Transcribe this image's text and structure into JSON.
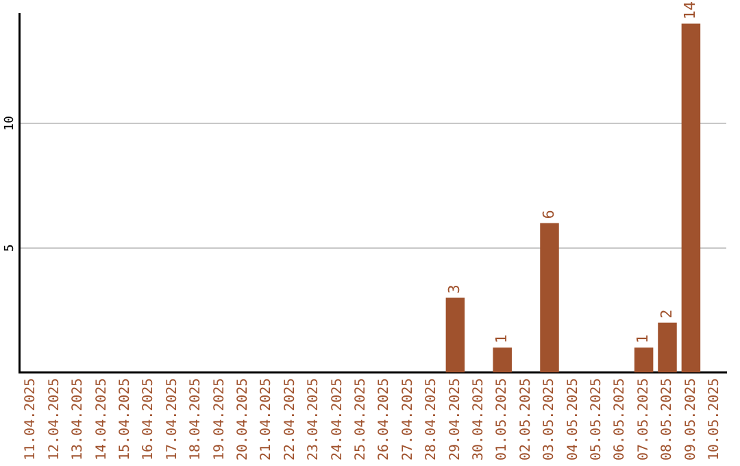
{
  "chart_data": {
    "type": "bar",
    "categories": [
      "11.04.2025",
      "12.04.2025",
      "13.04.2025",
      "14.04.2025",
      "15.04.2025",
      "16.04.2025",
      "17.04.2025",
      "18.04.2025",
      "19.04.2025",
      "20.04.2025",
      "21.04.2025",
      "22.04.2025",
      "23.04.2025",
      "24.04.2025",
      "25.04.2025",
      "26.04.2025",
      "27.04.2025",
      "28.04.2025",
      "29.04.2025",
      "30.04.2025",
      "01.05.2025",
      "02.05.2025",
      "03.05.2025",
      "04.05.2025",
      "05.05.2025",
      "06.05.2025",
      "07.05.2025",
      "08.05.2025",
      "09.05.2025",
      "10.05.2025"
    ],
    "values": [
      0,
      0,
      0,
      0,
      0,
      0,
      0,
      0,
      0,
      0,
      0,
      0,
      0,
      0,
      0,
      0,
      0,
      0,
      3,
      0,
      1,
      0,
      6,
      0,
      0,
      0,
      1,
      2,
      14,
      0
    ],
    "value_labels": [
      null,
      null,
      null,
      null,
      null,
      null,
      null,
      null,
      null,
      null,
      null,
      null,
      null,
      null,
      null,
      null,
      null,
      null,
      "3",
      null,
      "1",
      null,
      "6",
      null,
      null,
      null,
      "1",
      "2",
      "14",
      null
    ],
    "color": "#a0522d",
    "ylim": [
      0,
      14.4
    ],
    "yticks": [
      5,
      10
    ],
    "grid": "y",
    "legend": false
  }
}
